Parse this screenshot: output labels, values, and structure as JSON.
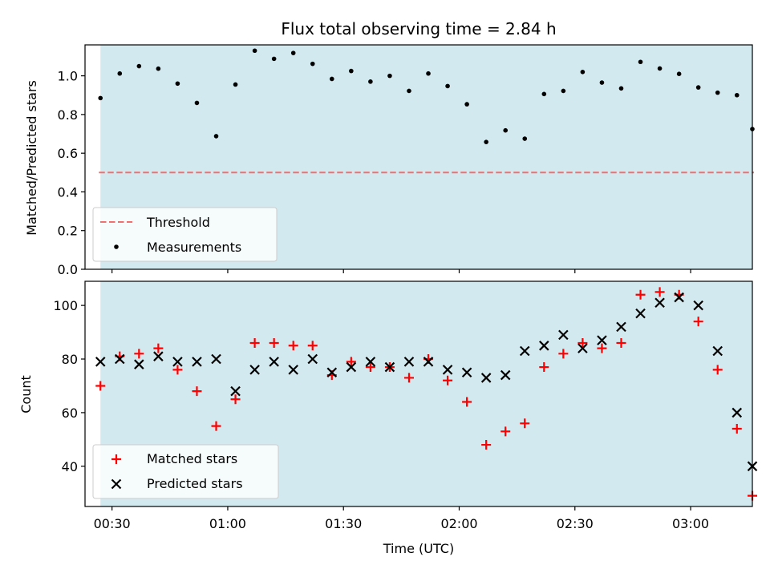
{
  "chart_data": [
    {
      "type": "scatter",
      "title": "Flux total observing time = 2.84 h",
      "xlabel": "",
      "ylabel": "Matched/Predicted stars",
      "xlim": [
        "00:23",
        "03:16"
      ],
      "ylim": [
        0,
        1.16
      ],
      "yticks": [
        0.0,
        0.2,
        0.4,
        0.6,
        0.8,
        1.0
      ],
      "ytick_labels": [
        "0.0",
        "0.2",
        "0.4",
        "0.6",
        "0.8",
        "1.0"
      ],
      "shaded_span": [
        "00:27",
        "03:16"
      ],
      "shade_color": "#d2e9ef",
      "threshold": {
        "name": "Threshold",
        "y": 0.5,
        "color": "#f07070",
        "style": "dashed"
      },
      "series": [
        {
          "name": "Measurements",
          "color": "#000000",
          "marker": "dot",
          "x": [
            "00:27",
            "00:32",
            "00:37",
            "00:42",
            "00:47",
            "00:52",
            "00:57",
            "01:02",
            "01:07",
            "01:12",
            "01:17",
            "01:22",
            "01:27",
            "01:32",
            "01:37",
            "01:42",
            "01:47",
            "01:52",
            "01:57",
            "02:02",
            "02:07",
            "02:12",
            "02:17",
            "02:22",
            "02:27",
            "02:32",
            "02:37",
            "02:42",
            "02:47",
            "02:52",
            "02:57",
            "03:02",
            "03:07",
            "03:12",
            "03:16"
          ],
          "y": [
            0.885,
            1.012,
            1.05,
            1.037,
            0.96,
            0.86,
            0.688,
            0.955,
            1.13,
            1.088,
            1.118,
            1.062,
            0.984,
            1.025,
            0.97,
            1.0,
            0.922,
            1.012,
            0.947,
            0.853,
            0.658,
            0.718,
            0.675,
            0.906,
            0.922,
            1.02,
            0.965,
            0.935,
            1.072,
            1.038,
            1.01,
            0.94,
            0.913,
            0.9,
            0.725
          ]
        }
      ],
      "legend": {
        "placement": "lower-left",
        "entries": [
          "Threshold",
          "Measurements"
        ]
      }
    },
    {
      "type": "scatter",
      "title": "",
      "xlabel": "Time (UTC)",
      "ylabel": "Count",
      "xlim": [
        "00:23",
        "03:16"
      ],
      "ylim": [
        25,
        109
      ],
      "yticks": [
        40,
        60,
        80,
        100
      ],
      "ytick_labels": [
        "40",
        "60",
        "80",
        "100"
      ],
      "xticks": [
        "00:30",
        "01:00",
        "01:30",
        "02:00",
        "02:30",
        "03:00"
      ],
      "xtick_labels": [
        "00:30",
        "01:00",
        "01:30",
        "02:00",
        "02:30",
        "03:00"
      ],
      "shaded_span": [
        "00:27",
        "03:16"
      ],
      "shade_color": "#d2e9ef",
      "series": [
        {
          "name": "Matched stars",
          "color": "#ff0000",
          "marker": "plus",
          "x": [
            "00:27",
            "00:32",
            "00:37",
            "00:42",
            "00:47",
            "00:52",
            "00:57",
            "01:02",
            "01:07",
            "01:12",
            "01:17",
            "01:22",
            "01:27",
            "01:32",
            "01:37",
            "01:42",
            "01:47",
            "01:52",
            "01:57",
            "02:02",
            "02:07",
            "02:12",
            "02:17",
            "02:22",
            "02:27",
            "02:32",
            "02:37",
            "02:42",
            "02:47",
            "02:52",
            "02:57",
            "03:02",
            "03:07",
            "03:12",
            "03:16"
          ],
          "y": [
            70,
            81,
            82,
            84,
            76,
            68,
            55,
            65,
            86,
            86,
            85,
            85,
            74,
            79,
            77,
            77,
            73,
            80,
            72,
            64,
            48,
            53,
            56,
            77,
            82,
            86,
            84,
            86,
            104,
            105,
            104,
            94,
            76,
            54,
            29
          ]
        },
        {
          "name": "Predicted stars",
          "color": "#000000",
          "marker": "x",
          "x": [
            "00:27",
            "00:32",
            "00:37",
            "00:42",
            "00:47",
            "00:52",
            "00:57",
            "01:02",
            "01:07",
            "01:12",
            "01:17",
            "01:22",
            "01:27",
            "01:32",
            "01:37",
            "01:42",
            "01:47",
            "01:52",
            "01:57",
            "02:02",
            "02:07",
            "02:12",
            "02:17",
            "02:22",
            "02:27",
            "02:32",
            "02:37",
            "02:42",
            "02:47",
            "02:52",
            "02:57",
            "03:02",
            "03:07",
            "03:12",
            "03:16"
          ],
          "y": [
            79,
            80,
            78,
            81,
            79,
            79,
            80,
            68,
            76,
            79,
            76,
            80,
            75,
            77,
            79,
            77,
            79,
            79,
            76,
            75,
            73,
            74,
            83,
            85,
            89,
            84,
            87,
            92,
            97,
            101,
            103,
            100,
            83,
            60,
            40
          ]
        }
      ],
      "legend": {
        "placement": "lower-left",
        "entries": [
          "Matched stars",
          "Predicted stars"
        ]
      }
    }
  ]
}
